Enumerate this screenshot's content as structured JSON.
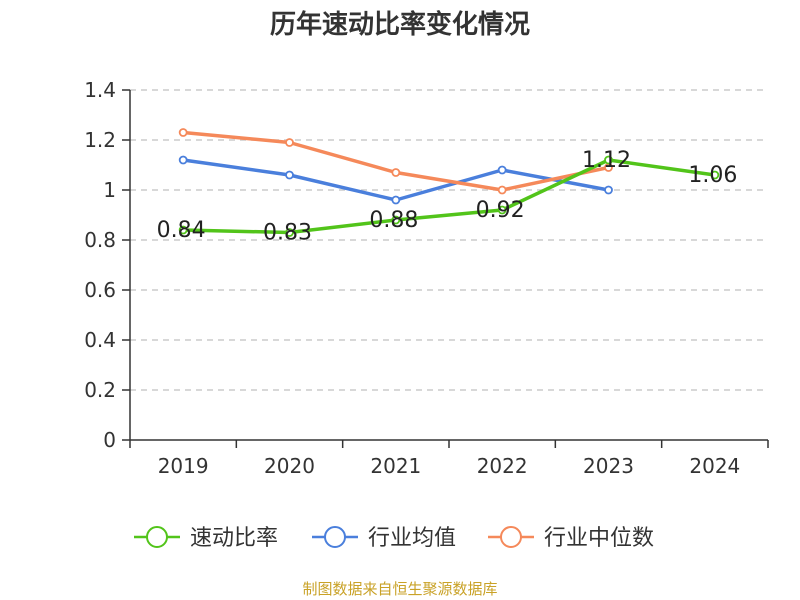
{
  "chart_data": {
    "type": "line",
    "title": "历年速动比率变化情况",
    "categories": [
      "2019",
      "2020",
      "2021",
      "2022",
      "2023",
      "2024"
    ],
    "ylim": [
      0,
      1.4
    ],
    "yticks": [
      "0",
      "0.2",
      "0.4",
      "0.6",
      "0.8",
      "1",
      "1.2",
      "1.4"
    ],
    "series": [
      {
        "name": "速动比率",
        "color": "#52c41a",
        "values": [
          0.84,
          0.83,
          0.88,
          0.92,
          1.12,
          1.06
        ],
        "labels": [
          "0.84",
          "0.83",
          "0.88",
          "0.92",
          "1.12",
          "1.06"
        ]
      },
      {
        "name": "行业均值",
        "color": "#4a7fdc",
        "values": [
          1.12,
          1.06,
          0.96,
          1.08,
          1.0,
          null
        ]
      },
      {
        "name": "行业中位数",
        "color": "#f5895a",
        "values": [
          1.23,
          1.19,
          1.07,
          1.0,
          1.09,
          null
        ]
      }
    ],
    "grid": "horizontal-dashed",
    "legend": "bottom-center"
  },
  "source": "制图数据来自恒生聚源数据库"
}
